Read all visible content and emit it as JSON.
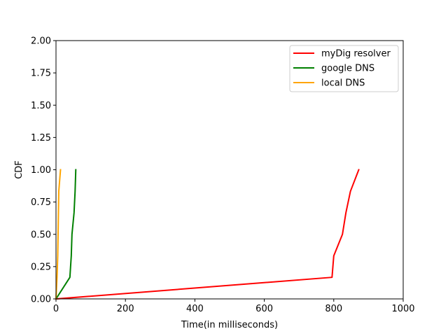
{
  "chart_data": {
    "type": "line",
    "xlabel": "Time(in milliseconds)",
    "ylabel": "CDF",
    "xlim": [
      0,
      1000
    ],
    "ylim": [
      0,
      2.0
    ],
    "x_ticks": [
      "0",
      "200",
      "400",
      "600",
      "800",
      "1000"
    ],
    "y_ticks": [
      "0.00",
      "0.25",
      "0.50",
      "0.75",
      "1.00",
      "1.25",
      "1.50",
      "1.75",
      "2.00"
    ],
    "grid": false,
    "legend_position": "top-right",
    "series": [
      {
        "name": "myDig resolver",
        "color": "#ff0000",
        "points": [
          [
            0,
            0
          ],
          [
            795,
            0.167
          ],
          [
            800,
            0.333
          ],
          [
            825,
            0.5
          ],
          [
            835,
            0.667
          ],
          [
            848,
            0.833
          ],
          [
            872,
            1.0
          ]
        ]
      },
      {
        "name": "google DNS",
        "color": "#008000",
        "points": [
          [
            0,
            0
          ],
          [
            40,
            0.167
          ],
          [
            44,
            0.333
          ],
          [
            46,
            0.5
          ],
          [
            52,
            0.667
          ],
          [
            55,
            0.833
          ],
          [
            57,
            1.0
          ]
        ]
      },
      {
        "name": "local DNS",
        "color": "#ffa500",
        "points": [
          [
            0,
            0
          ],
          [
            3,
            0.167
          ],
          [
            5,
            0.333
          ],
          [
            6,
            0.5
          ],
          [
            7,
            0.667
          ],
          [
            8,
            0.833
          ],
          [
            13,
            1.0
          ]
        ]
      }
    ]
  }
}
